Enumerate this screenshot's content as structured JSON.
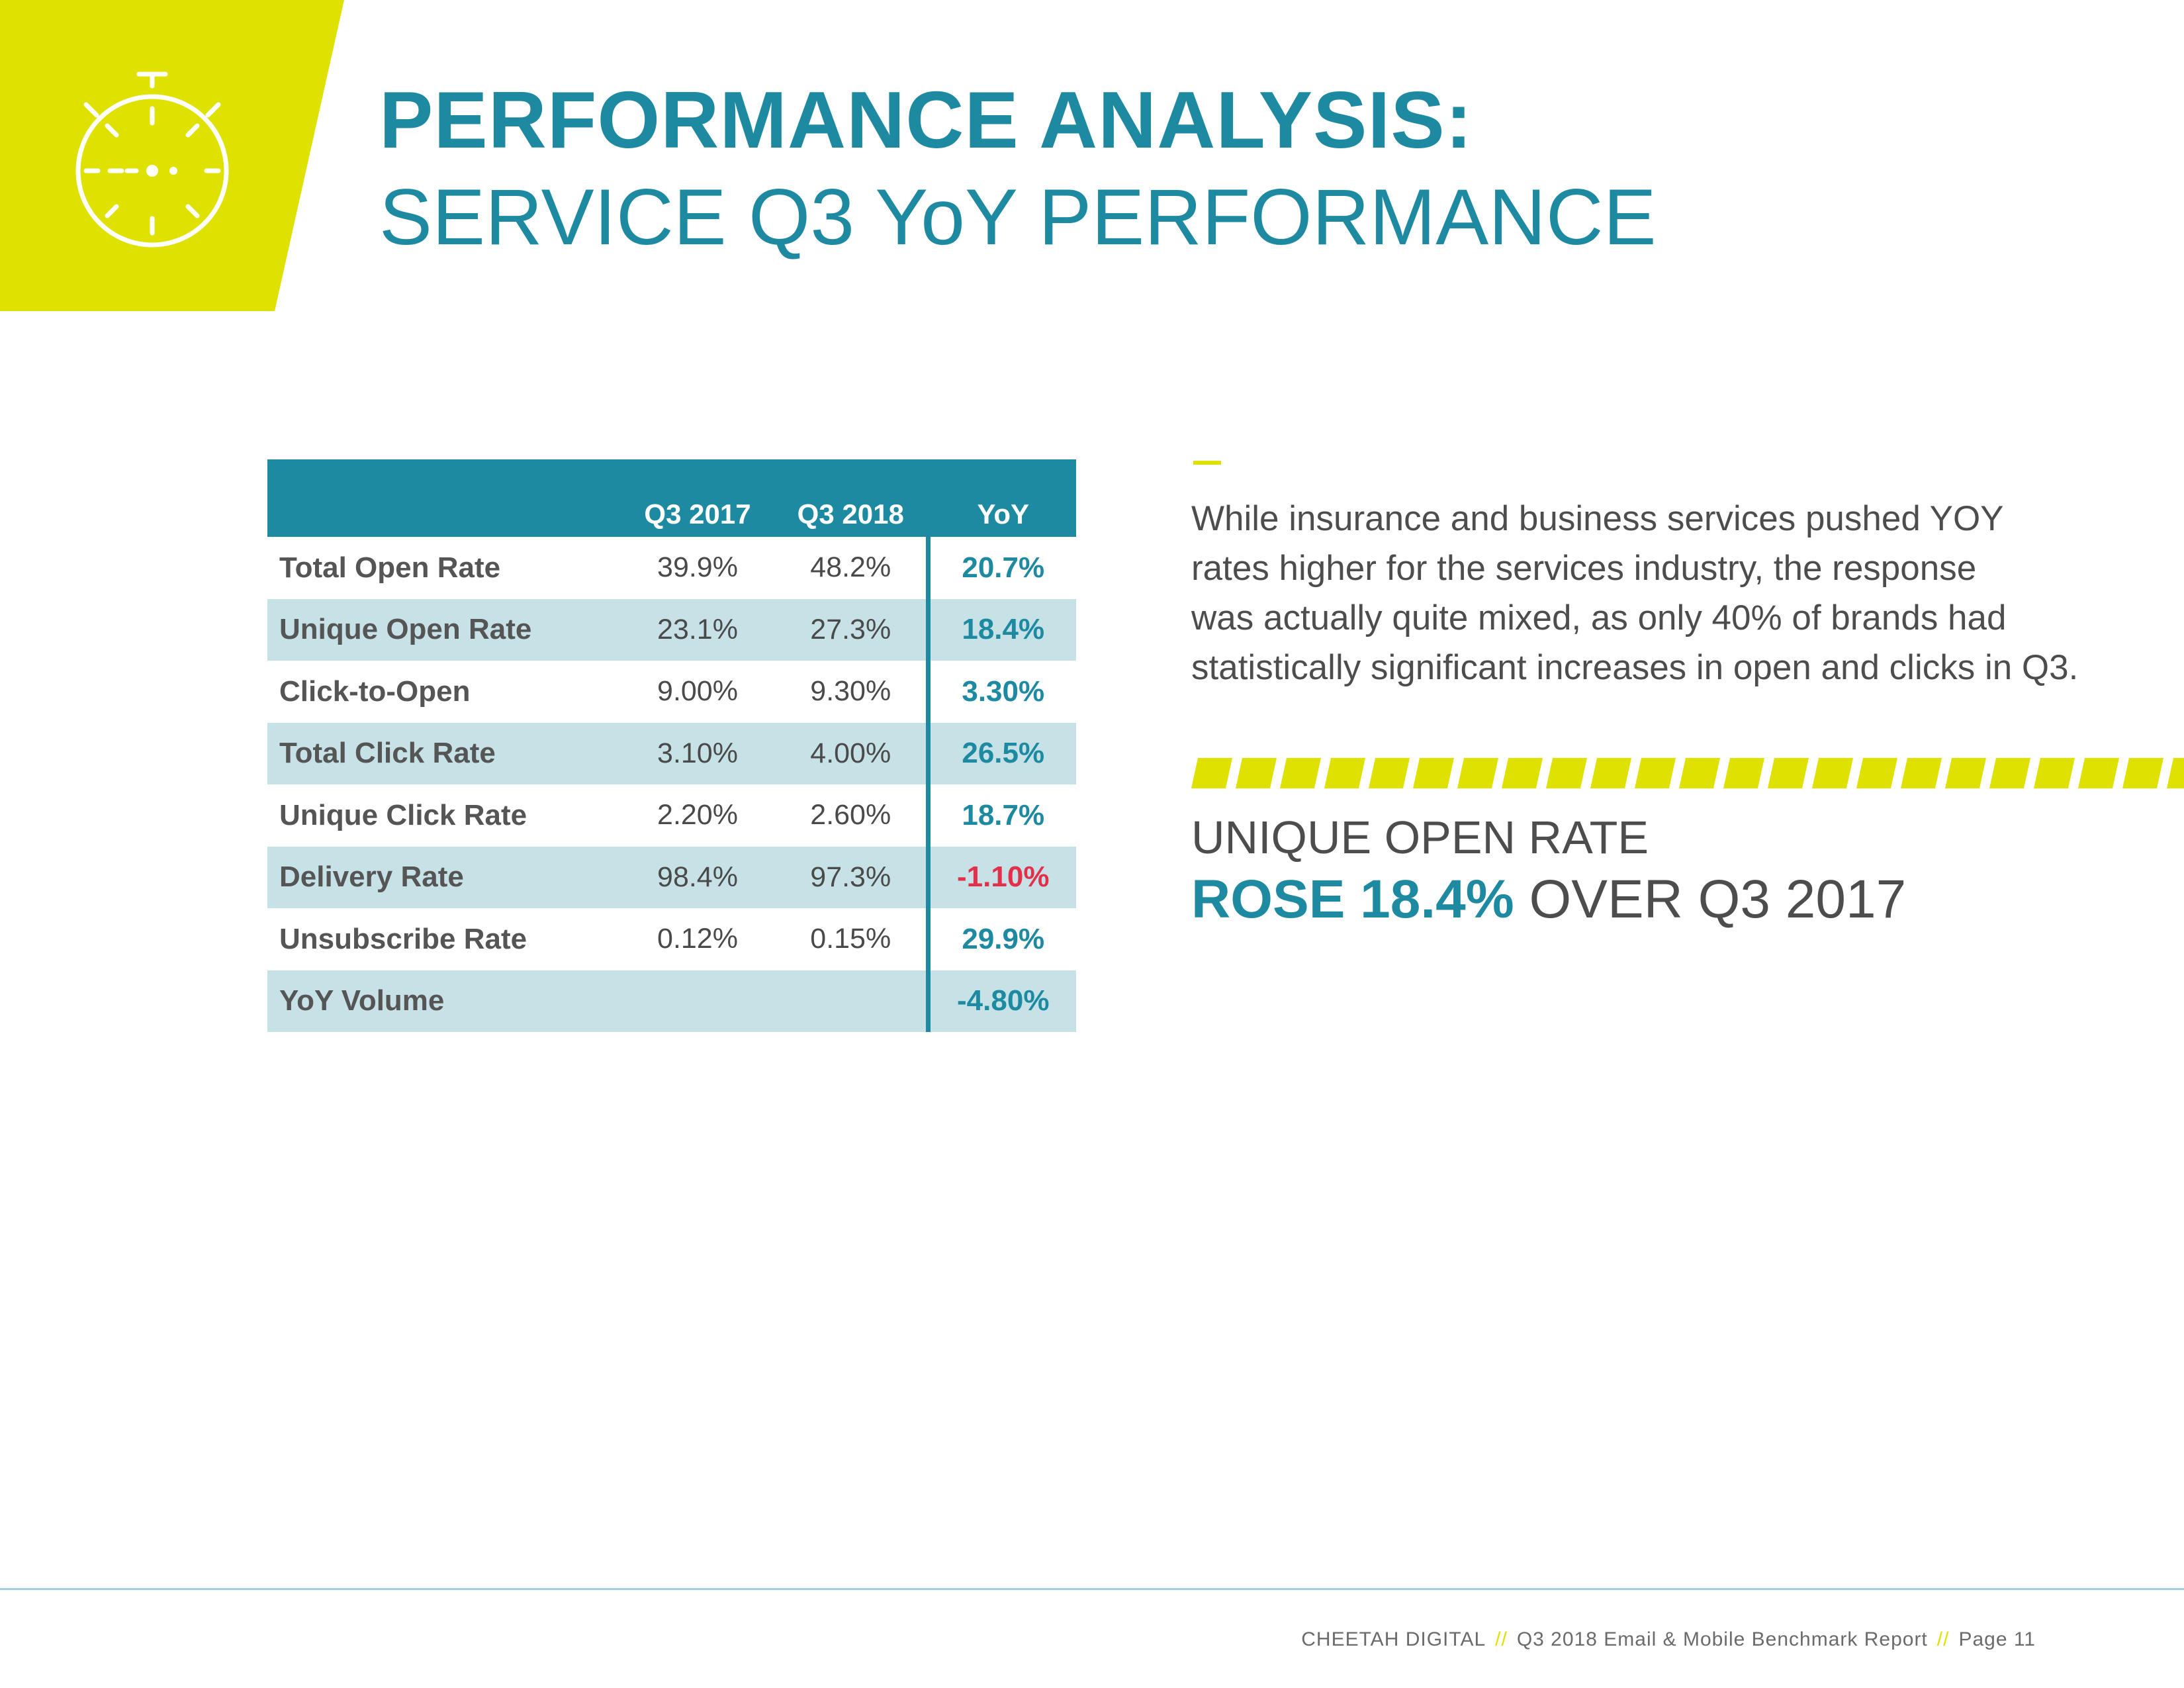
{
  "header": {
    "title_bold": "PERFORMANCE ANALYSIS:",
    "title_light": "SERVICE Q3 YoY PERFORMANCE",
    "icon": "stopwatch-icon",
    "accent_color": "#dfe200",
    "brand_color": "#1d8aa2"
  },
  "table": {
    "columns": [
      "",
      "Q3 2017",
      "Q3 2018",
      "YoY"
    ],
    "rows": [
      {
        "label": "Total Open Rate",
        "q3_2017": "39.9%",
        "q3_2018": "48.2%",
        "yoy": "20.7%"
      },
      {
        "label": "Unique Open Rate",
        "q3_2017": "23.1%",
        "q3_2018": "27.3%",
        "yoy": "18.4%"
      },
      {
        "label": "Click-to-Open",
        "q3_2017": "9.00%",
        "q3_2018": "9.30%",
        "yoy": "3.30%"
      },
      {
        "label": "Total Click Rate",
        "q3_2017": "3.10%",
        "q3_2018": "4.00%",
        "yoy": "26.5%"
      },
      {
        "label": "Unique Click Rate",
        "q3_2017": "2.20%",
        "q3_2018": "2.60%",
        "yoy": "18.7%"
      },
      {
        "label": "Delivery Rate",
        "q3_2017": "98.4%",
        "q3_2018": "97.3%",
        "yoy": "-1.10%"
      },
      {
        "label": "Unsubscribe Rate",
        "q3_2017": "0.12%",
        "q3_2018": "0.15%",
        "yoy": "29.9%"
      },
      {
        "label": "YoY Volume",
        "q3_2017": "",
        "q3_2018": "",
        "yoy": "-4.80%"
      }
    ],
    "negative_color": "#e2304a"
  },
  "commentary": {
    "paragraph_lines": [
      "While insurance and business services pushed YOY",
      "rates higher for the services industry, the response",
      "was actually quite mixed, as only 40% of brands had",
      "statistically significant increases in open and clicks in Q3."
    ],
    "callout_line1": "UNIQUE OPEN RATE",
    "callout_highlight": "ROSE 18.4%",
    "callout_rest": " OVER Q3 2017"
  },
  "footer": {
    "company": "CHEETAH DIGITAL",
    "separator": "//",
    "report": "Q3 2018 Email & Mobile Benchmark Report",
    "page": "Page 11"
  }
}
